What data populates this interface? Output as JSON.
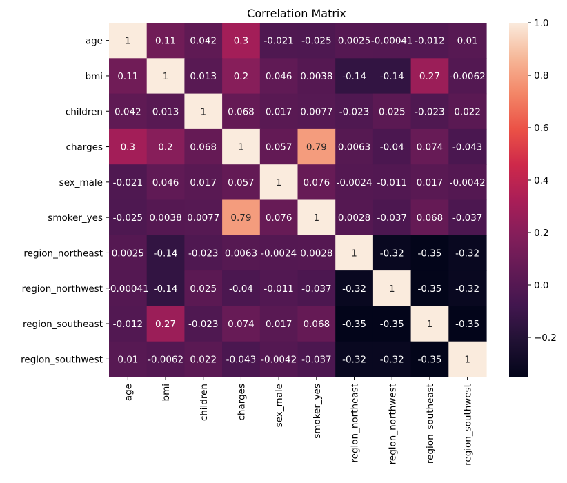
{
  "chart_data": {
    "type": "heatmap",
    "title": "Correlation Matrix",
    "xlabel": "",
    "ylabel": "",
    "categories": [
      "age",
      "bmi",
      "children",
      "charges",
      "sex_male",
      "smoker_yes",
      "region_northeast",
      "region_northwest",
      "region_southeast",
      "region_southwest"
    ],
    "values": [
      [
        1,
        0.11,
        0.042,
        0.3,
        -0.021,
        -0.025,
        0.0025,
        -0.00041,
        -0.012,
        0.01
      ],
      [
        0.11,
        1,
        0.013,
        0.2,
        0.046,
        0.0038,
        -0.14,
        -0.14,
        0.27,
        -0.0062
      ],
      [
        0.042,
        0.013,
        1,
        0.068,
        0.017,
        0.0077,
        -0.023,
        0.025,
        -0.023,
        0.022
      ],
      [
        0.3,
        0.2,
        0.068,
        1,
        0.057,
        0.79,
        0.0063,
        -0.04,
        0.074,
        -0.043
      ],
      [
        -0.021,
        0.046,
        0.017,
        0.057,
        1,
        0.076,
        -0.0024,
        -0.011,
        0.017,
        -0.0042
      ],
      [
        -0.025,
        0.0038,
        0.0077,
        0.79,
        0.076,
        1,
        0.0028,
        -0.037,
        0.068,
        -0.037
      ],
      [
        0.0025,
        -0.14,
        -0.023,
        0.0063,
        -0.0024,
        0.0028,
        1,
        -0.32,
        -0.35,
        -0.32
      ],
      [
        -0.00041,
        -0.14,
        0.025,
        -0.04,
        -0.011,
        -0.037,
        -0.32,
        1,
        -0.35,
        -0.32
      ],
      [
        -0.012,
        0.27,
        -0.023,
        0.074,
        0.017,
        0.068,
        -0.35,
        -0.35,
        1,
        -0.35
      ],
      [
        0.01,
        -0.0062,
        0.022,
        -0.043,
        -0.0042,
        -0.037,
        -0.32,
        -0.32,
        -0.35,
        1
      ]
    ],
    "colorbar": {
      "range": [
        -0.35,
        1.0
      ],
      "ticks": [
        -0.2,
        0.0,
        0.2,
        0.4,
        0.6,
        0.8,
        1.0
      ],
      "tick_labels": [
        "−0.2",
        "0.0",
        "0.2",
        "0.4",
        "0.6",
        "0.8",
        "1.0"
      ]
    },
    "colormap": "rocket",
    "annotations": true,
    "grid": false
  }
}
